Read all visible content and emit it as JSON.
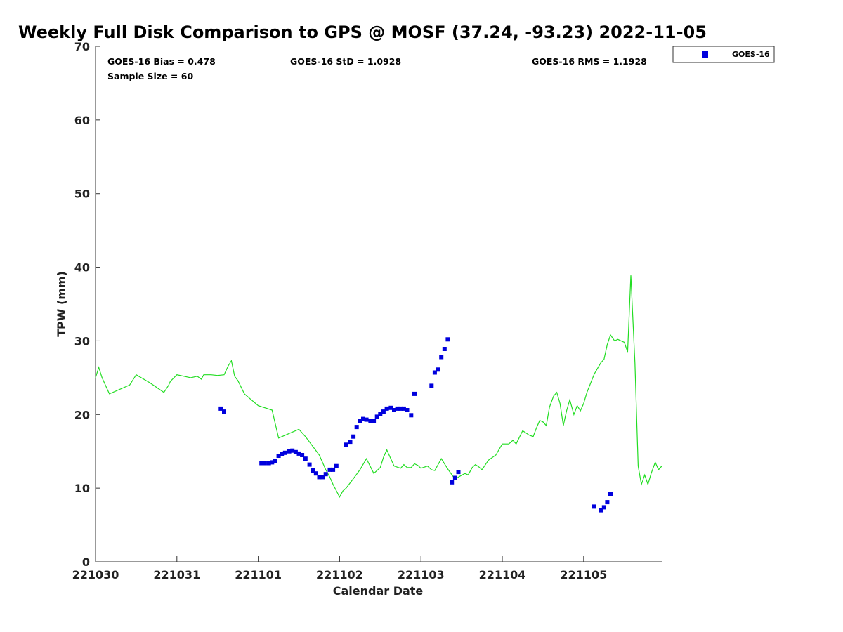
{
  "chart_data": {
    "type": "scatter",
    "title": "Weekly Full Disk Comparison to GPS @ MOSF (37.24, -93.23) 2022-11-05",
    "xlabel": "Calendar Date",
    "ylabel": "TPW (mm)",
    "xlim": [
      0,
      6.96
    ],
    "ylim": [
      0,
      70
    ],
    "x_ticks": [
      0,
      1,
      2,
      3,
      4,
      5,
      6
    ],
    "x_tick_labels": [
      "221030",
      "221031",
      "221101",
      "221102",
      "221103",
      "221104",
      "221105"
    ],
    "y_ticks": [
      0,
      10,
      20,
      30,
      40,
      50,
      60,
      70
    ],
    "y_tick_labels": [
      "0",
      "10",
      "20",
      "30",
      "40",
      "50",
      "60",
      "70"
    ],
    "grid": false,
    "legend_position": "top-right",
    "stats": {
      "bias": "GOES-16 Bias = 0.478",
      "std": "GOES-16 StD = 1.0928",
      "rms": "GOES-16 RMS = 1.1928",
      "sample": "Sample Size = 60"
    },
    "colors": {
      "gps_line": "#22dd22",
      "goes16": "#0000dd"
    },
    "gps_line": {
      "x": [
        0.0,
        0.04,
        0.08,
        0.17,
        0.42,
        0.5,
        0.67,
        0.84,
        0.87,
        0.9,
        0.92,
        1.0,
        1.17,
        1.25,
        1.3,
        1.33,
        1.42,
        1.5,
        1.58,
        1.63,
        1.67,
        1.71,
        1.75,
        1.83,
        2.0,
        2.17,
        2.25,
        2.5,
        2.54,
        2.58,
        2.75,
        2.83,
        2.88,
        2.92,
        3.0,
        3.04,
        3.08,
        3.17,
        3.25,
        3.33,
        3.42,
        3.5,
        3.54,
        3.58,
        3.67,
        3.75,
        3.79,
        3.83,
        3.88,
        3.92,
        3.96,
        4.0,
        4.08,
        4.13,
        4.17,
        4.25,
        4.33,
        4.42,
        4.46,
        4.54,
        4.58,
        4.63,
        4.67,
        4.71,
        4.75,
        4.83,
        4.92,
        5.0,
        5.08,
        5.13,
        5.17,
        5.25,
        5.33,
        5.38,
        5.42,
        5.46,
        5.5,
        5.54,
        5.58,
        5.63,
        5.67,
        5.71,
        5.75,
        5.79,
        5.83,
        5.88,
        5.92,
        5.96,
        6.0,
        6.04,
        6.13,
        6.21,
        6.25,
        6.29,
        6.33,
        6.38,
        6.42,
        6.46,
        6.5,
        6.54,
        6.58,
        6.63,
        6.67,
        6.71,
        6.75,
        6.79,
        6.83,
        6.88,
        6.92,
        6.96
      ],
      "y": [
        25.0,
        26.4,
        25.0,
        22.8,
        24.0,
        25.4,
        24.3,
        23.0,
        23.5,
        24.0,
        24.5,
        25.4,
        25.0,
        25.2,
        24.8,
        25.4,
        25.4,
        25.3,
        25.4,
        26.6,
        27.3,
        25.2,
        24.6,
        22.8,
        21.2,
        20.6,
        16.8,
        18.0,
        17.5,
        17.0,
        14.5,
        12.5,
        11.5,
        10.5,
        8.8,
        9.6,
        10.0,
        11.3,
        12.5,
        14.0,
        12.0,
        12.8,
        14.2,
        15.2,
        13.0,
        12.7,
        13.2,
        12.8,
        12.8,
        13.3,
        13.1,
        12.7,
        13.0,
        12.5,
        12.4,
        14.0,
        12.6,
        11.2,
        11.5,
        12.0,
        11.8,
        12.8,
        13.2,
        12.9,
        12.5,
        13.8,
        14.5,
        16.0,
        16.0,
        16.5,
        16.0,
        17.8,
        17.2,
        17.0,
        18.2,
        19.2,
        19.0,
        18.5,
        21.0,
        22.5,
        23.0,
        21.5,
        18.5,
        20.5,
        22.0,
        20.0,
        21.2,
        20.5,
        21.5,
        23.0,
        25.5,
        27.0,
        27.5,
        29.5,
        30.8,
        30.0,
        30.2,
        30.0,
        29.8,
        28.5,
        38.9,
        27.0,
        13.0,
        10.5,
        11.8,
        10.5,
        12.0,
        13.5,
        12.5,
        13.0
      ]
    },
    "series": [
      {
        "name": "GOES-16",
        "x": [
          1.54,
          1.58,
          2.04,
          2.08,
          2.13,
          2.17,
          2.21,
          2.25,
          2.29,
          2.33,
          2.38,
          2.42,
          2.46,
          2.5,
          2.54,
          2.58,
          2.63,
          2.67,
          2.71,
          2.75,
          2.79,
          2.83,
          2.88,
          2.92,
          2.96,
          3.08,
          3.13,
          3.17,
          3.21,
          3.25,
          3.29,
          3.33,
          3.38,
          3.42,
          3.46,
          3.5,
          3.54,
          3.58,
          3.63,
          3.67,
          3.71,
          3.75,
          3.79,
          3.83,
          3.88,
          3.92,
          4.13,
          4.17,
          4.21,
          4.25,
          4.29,
          4.33,
          4.38,
          4.42,
          4.46,
          6.13,
          6.21,
          6.25,
          6.29,
          6.33
        ],
        "y": [
          20.8,
          20.4,
          13.4,
          13.4,
          13.4,
          13.5,
          13.7,
          14.4,
          14.6,
          14.8,
          15.0,
          15.1,
          14.9,
          14.7,
          14.5,
          14.0,
          13.2,
          12.4,
          12.0,
          11.5,
          11.5,
          11.9,
          12.5,
          12.5,
          13.0,
          15.9,
          16.3,
          17.0,
          18.3,
          19.1,
          19.4,
          19.3,
          19.1,
          19.1,
          19.7,
          20.1,
          20.4,
          20.8,
          20.9,
          20.6,
          20.8,
          20.8,
          20.8,
          20.6,
          19.9,
          22.8,
          23.9,
          25.7,
          26.1,
          27.8,
          28.9,
          30.2,
          10.8,
          11.4,
          12.2,
          7.5,
          7.0,
          7.4,
          8.1,
          9.2
        ]
      }
    ]
  }
}
